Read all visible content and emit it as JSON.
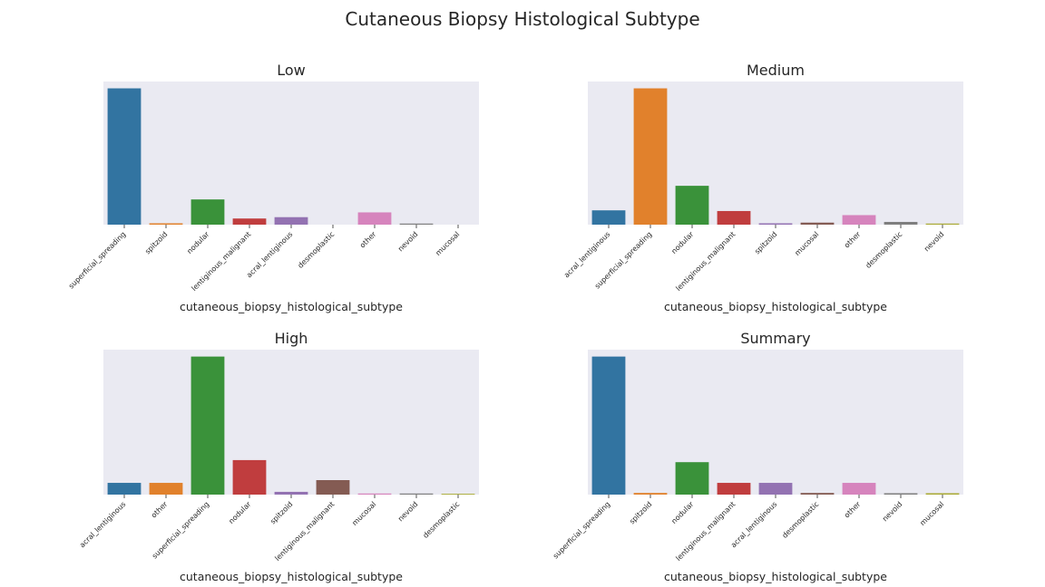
{
  "figure": {
    "title": "Cutaneous Biopsy Histological Subtype"
  },
  "palette": {
    "superficial_spreading": "#3274a1",
    "spitzoid": "#e1812c",
    "nodular": "#3a923a",
    "lentiginous_malignant": "#c03d3e",
    "acral_lentiginous": "#9372b2",
    "desmoplastic": "#845b53",
    "other": "#d684bd",
    "nevoid": "#7f7f7f",
    "mucosal": "#a9aa35",
    "medium_slot_colors": [
      "#3274a1",
      "#e1812c",
      "#3a923a",
      "#c03d3e",
      "#9372b2",
      "#845b53",
      "#d684bd",
      "#7f7f7f",
      "#a9aa35"
    ]
  },
  "chart_data": [
    {
      "type": "bar",
      "title": "Low",
      "xlabel": "cutaneous_biopsy_histological_subtype",
      "ylabel": "",
      "ylim": [
        0,
        1.05
      ],
      "categories": [
        "superficial_spreading",
        "spitzoid",
        "nodular",
        "lentiginous_malignant",
        "acral_lentiginous",
        "desmoplastic",
        "other",
        "nevoid",
        "mucosal"
      ],
      "values": [
        1.0,
        0.01,
        0.185,
        0.045,
        0.055,
        0.0,
        0.09,
        0.008,
        0.0
      ],
      "colors": [
        "#3274a1",
        "#e1812c",
        "#3a923a",
        "#c03d3e",
        "#9372b2",
        "#845b53",
        "#d684bd",
        "#7f7f7f",
        "#a9aa35"
      ]
    },
    {
      "type": "bar",
      "title": "Medium",
      "xlabel": "cutaneous_biopsy_histological_subtype",
      "ylabel": "",
      "ylim": [
        0,
        1.05
      ],
      "categories": [
        "acral_lentiginous",
        "superficial_spreading",
        "nodular",
        "lentiginous_malignant",
        "spitzoid",
        "mucosal",
        "other",
        "desmoplastic",
        "nevoid"
      ],
      "values": [
        0.105,
        1.0,
        0.285,
        0.1,
        0.01,
        0.015,
        0.07,
        0.02,
        0.008
      ],
      "colors": [
        "#3274a1",
        "#e1812c",
        "#3a923a",
        "#c03d3e",
        "#9372b2",
        "#845b53",
        "#d684bd",
        "#7f7f7f",
        "#a9aa35"
      ]
    },
    {
      "type": "bar",
      "title": "High",
      "xlabel": "cutaneous_biopsy_histological_subtype",
      "ylabel": "",
      "ylim": [
        0,
        1.05
      ],
      "categories": [
        "acral_lentiginous",
        "other",
        "superficial_spreading",
        "nodular",
        "spitzoid",
        "lentiginous_malignant",
        "mucosal",
        "nevoid",
        "desmoplastic"
      ],
      "values": [
        0.085,
        0.085,
        1.0,
        0.25,
        0.02,
        0.105,
        0.008,
        0.008,
        0.006
      ],
      "colors": [
        "#3274a1",
        "#e1812c",
        "#3a923a",
        "#c03d3e",
        "#9372b2",
        "#845b53",
        "#d684bd",
        "#7f7f7f",
        "#a9aa35"
      ]
    },
    {
      "type": "bar",
      "title": "Summary",
      "xlabel": "cutaneous_biopsy_histological_subtype",
      "ylabel": "",
      "ylim": [
        0,
        1.05
      ],
      "categories": [
        "superficial_spreading",
        "spitzoid",
        "nodular",
        "lentiginous_malignant",
        "acral_lentiginous",
        "desmoplastic",
        "other",
        "nevoid",
        "mucosal"
      ],
      "values": [
        1.0,
        0.012,
        0.235,
        0.085,
        0.085,
        0.012,
        0.085,
        0.01,
        0.01
      ],
      "colors": [
        "#3274a1",
        "#e1812c",
        "#3a923a",
        "#c03d3e",
        "#9372b2",
        "#845b53",
        "#d684bd",
        "#7f7f7f",
        "#a9aa35"
      ]
    }
  ]
}
